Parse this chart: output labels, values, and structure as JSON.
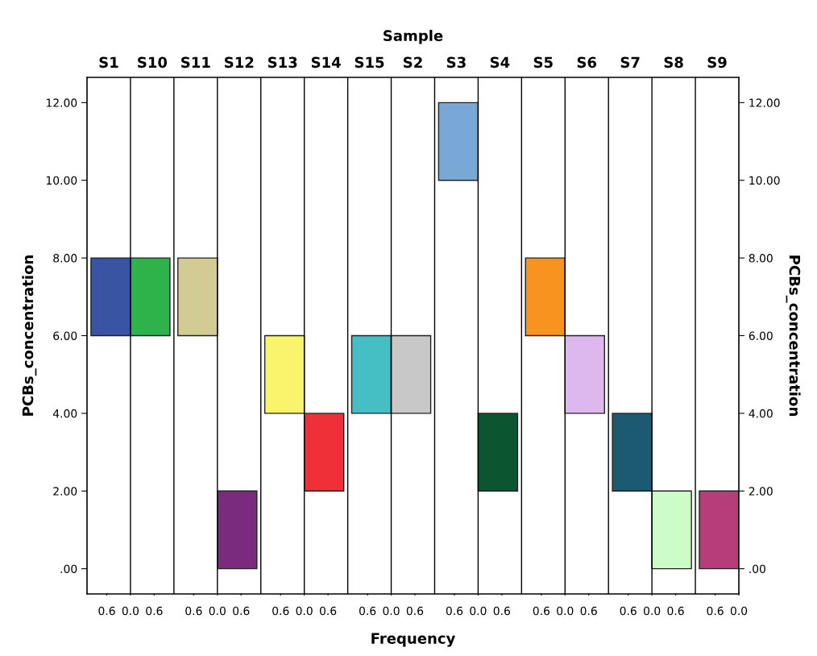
{
  "chart_data": {
    "type": "bar",
    "xlabel": "Sample",
    "ylabel": "PCBs_concentration",
    "y2label": "PCBs_concentration",
    "categories": [
      "S1",
      "S10",
      "S11",
      "S12",
      "S13",
      "S14",
      "S15",
      "S2",
      "S3",
      "S4",
      "S5",
      "S6",
      "S7",
      "S8",
      "S9"
    ],
    "base": [
      6,
      6,
      6,
      0,
      4,
      2,
      4,
      4,
      10,
      2,
      6,
      4,
      2,
      0,
      0
    ],
    "values": [
      2,
      2,
      2,
      2,
      2,
      2,
      2,
      2,
      2,
      2,
      2,
      2,
      2,
      2,
      2
    ],
    "colors": [
      "#3a54a4",
      "#2db34a",
      "#d2cc94",
      "#7b2b7e",
      "#f8f46c",
      "#ef3038",
      "#45bfc4",
      "#c8c8c8",
      "#7aa8d6",
      "#0b5530",
      "#f7931e",
      "#dcb8ee",
      "#1b5a70",
      "#ccfcc8",
      "#b73c7a"
    ],
    "ylim": [
      -0.65,
      12.65
    ],
    "yticks": [
      {
        "value": 0,
        "label": ".00"
      },
      {
        "value": 2,
        "label": "2.00"
      },
      {
        "value": 4,
        "label": "4.00"
      },
      {
        "value": 6,
        "label": "6.00"
      },
      {
        "value": 8,
        "label": "8.00"
      },
      {
        "value": 10,
        "label": "10.00"
      },
      {
        "value": 12,
        "label": "12.00"
      }
    ],
    "y2lim": [
      -0.65,
      12.65
    ],
    "y2ticks": [
      {
        "value": 0,
        "label": ".00"
      },
      {
        "value": 2,
        "label": "2.00"
      },
      {
        "value": 4,
        "label": "4.00"
      },
      {
        "value": 6,
        "label": "6.00"
      },
      {
        "value": 8,
        "label": "8.00"
      },
      {
        "value": 10,
        "label": "10.00"
      },
      {
        "value": 12,
        "label": "12.00"
      }
    ],
    "annotations": [
      "Frequency",
      "0.6",
      "0.0",
      "0.6",
      "0.6",
      "0.0",
      "0.6",
      "0.6",
      "0.0",
      "0.6",
      "0.6",
      "0.0",
      "0.6",
      "0.6",
      "0.0",
      "0.6",
      "0.6",
      "0.0",
      "0.6",
      "0.6",
      "0.0",
      "0.6",
      "0.6",
      "0.0"
    ]
  }
}
